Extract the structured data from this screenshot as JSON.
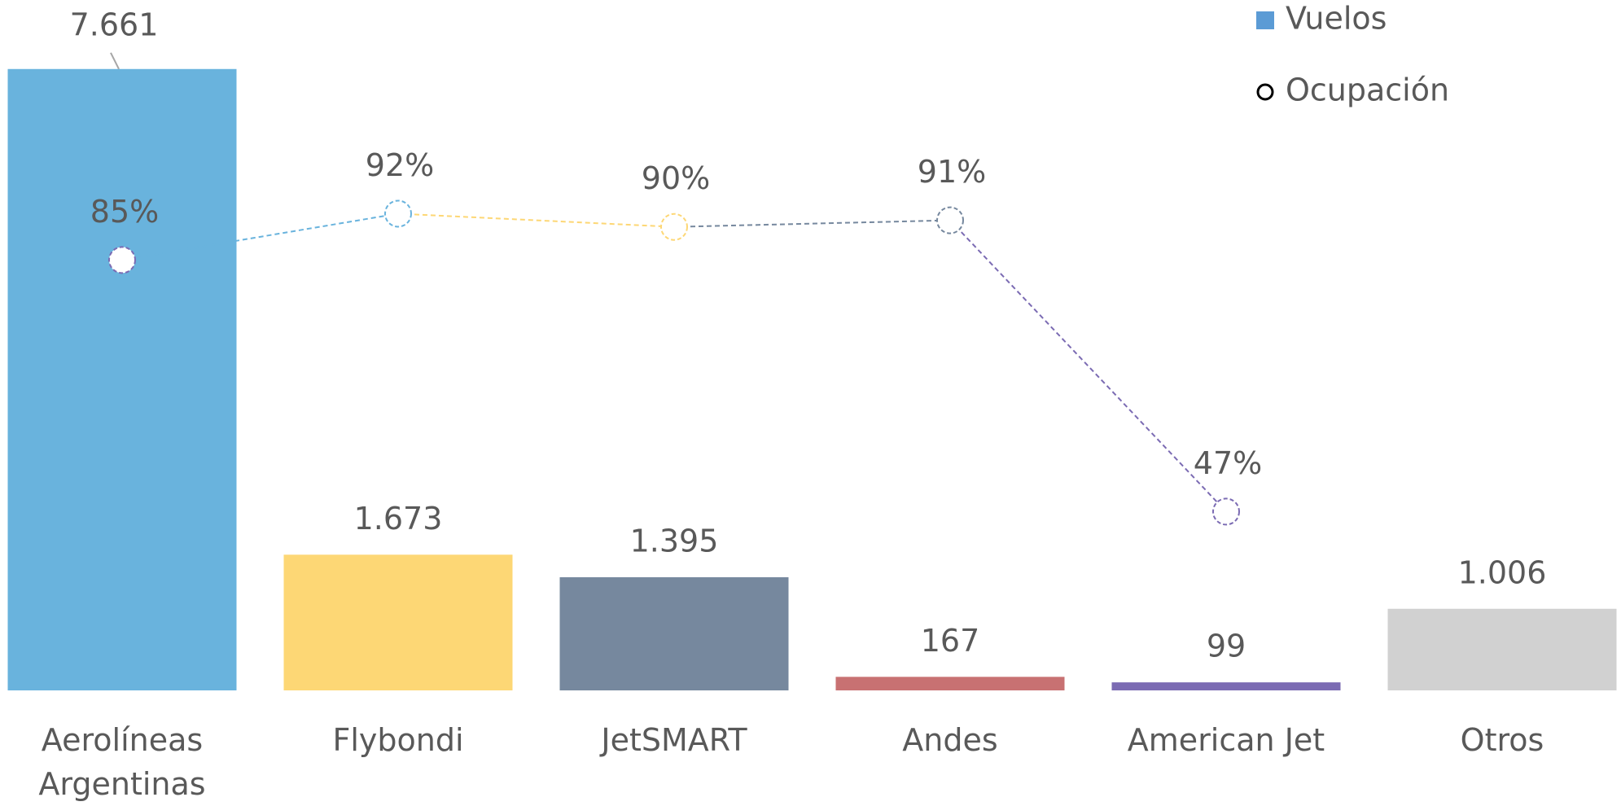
{
  "chart_data": {
    "type": "bar",
    "categories": [
      "Aerolíneas Argentinas",
      "Flybondi",
      "JetSMART",
      "Andes",
      "American Jet",
      "Otros"
    ],
    "ylim": [
      0,
      8000
    ],
    "y2lim": [
      20,
      118
    ],
    "legend": "top-right",
    "series": [
      {
        "name": "Vuelos",
        "type": "bar",
        "color": "#5b9bd5",
        "colors": [
          "#69b3dd",
          "#fdd775",
          "#76889e",
          "#c87172",
          "#7b6bb3",
          "#d1d1d1"
        ],
        "values": [
          7661,
          1673,
          1395,
          167,
          99,
          1006
        ],
        "value_labels": [
          "7.661",
          "1.673",
          "1.395",
          "167",
          "99",
          "1.006"
        ]
      },
      {
        "name": "Ocupación",
        "type": "line",
        "axis": "y2",
        "color": "#000000",
        "colors": [
          "#7b6bb3",
          "#69b3dd",
          "#fdd775",
          "#76889e",
          "#7b6bb3",
          null
        ],
        "values": [
          85,
          92,
          90,
          91,
          47,
          null
        ],
        "value_labels": [
          "85%",
          "92%",
          "90%",
          "91%",
          "47%",
          null
        ]
      }
    ]
  }
}
